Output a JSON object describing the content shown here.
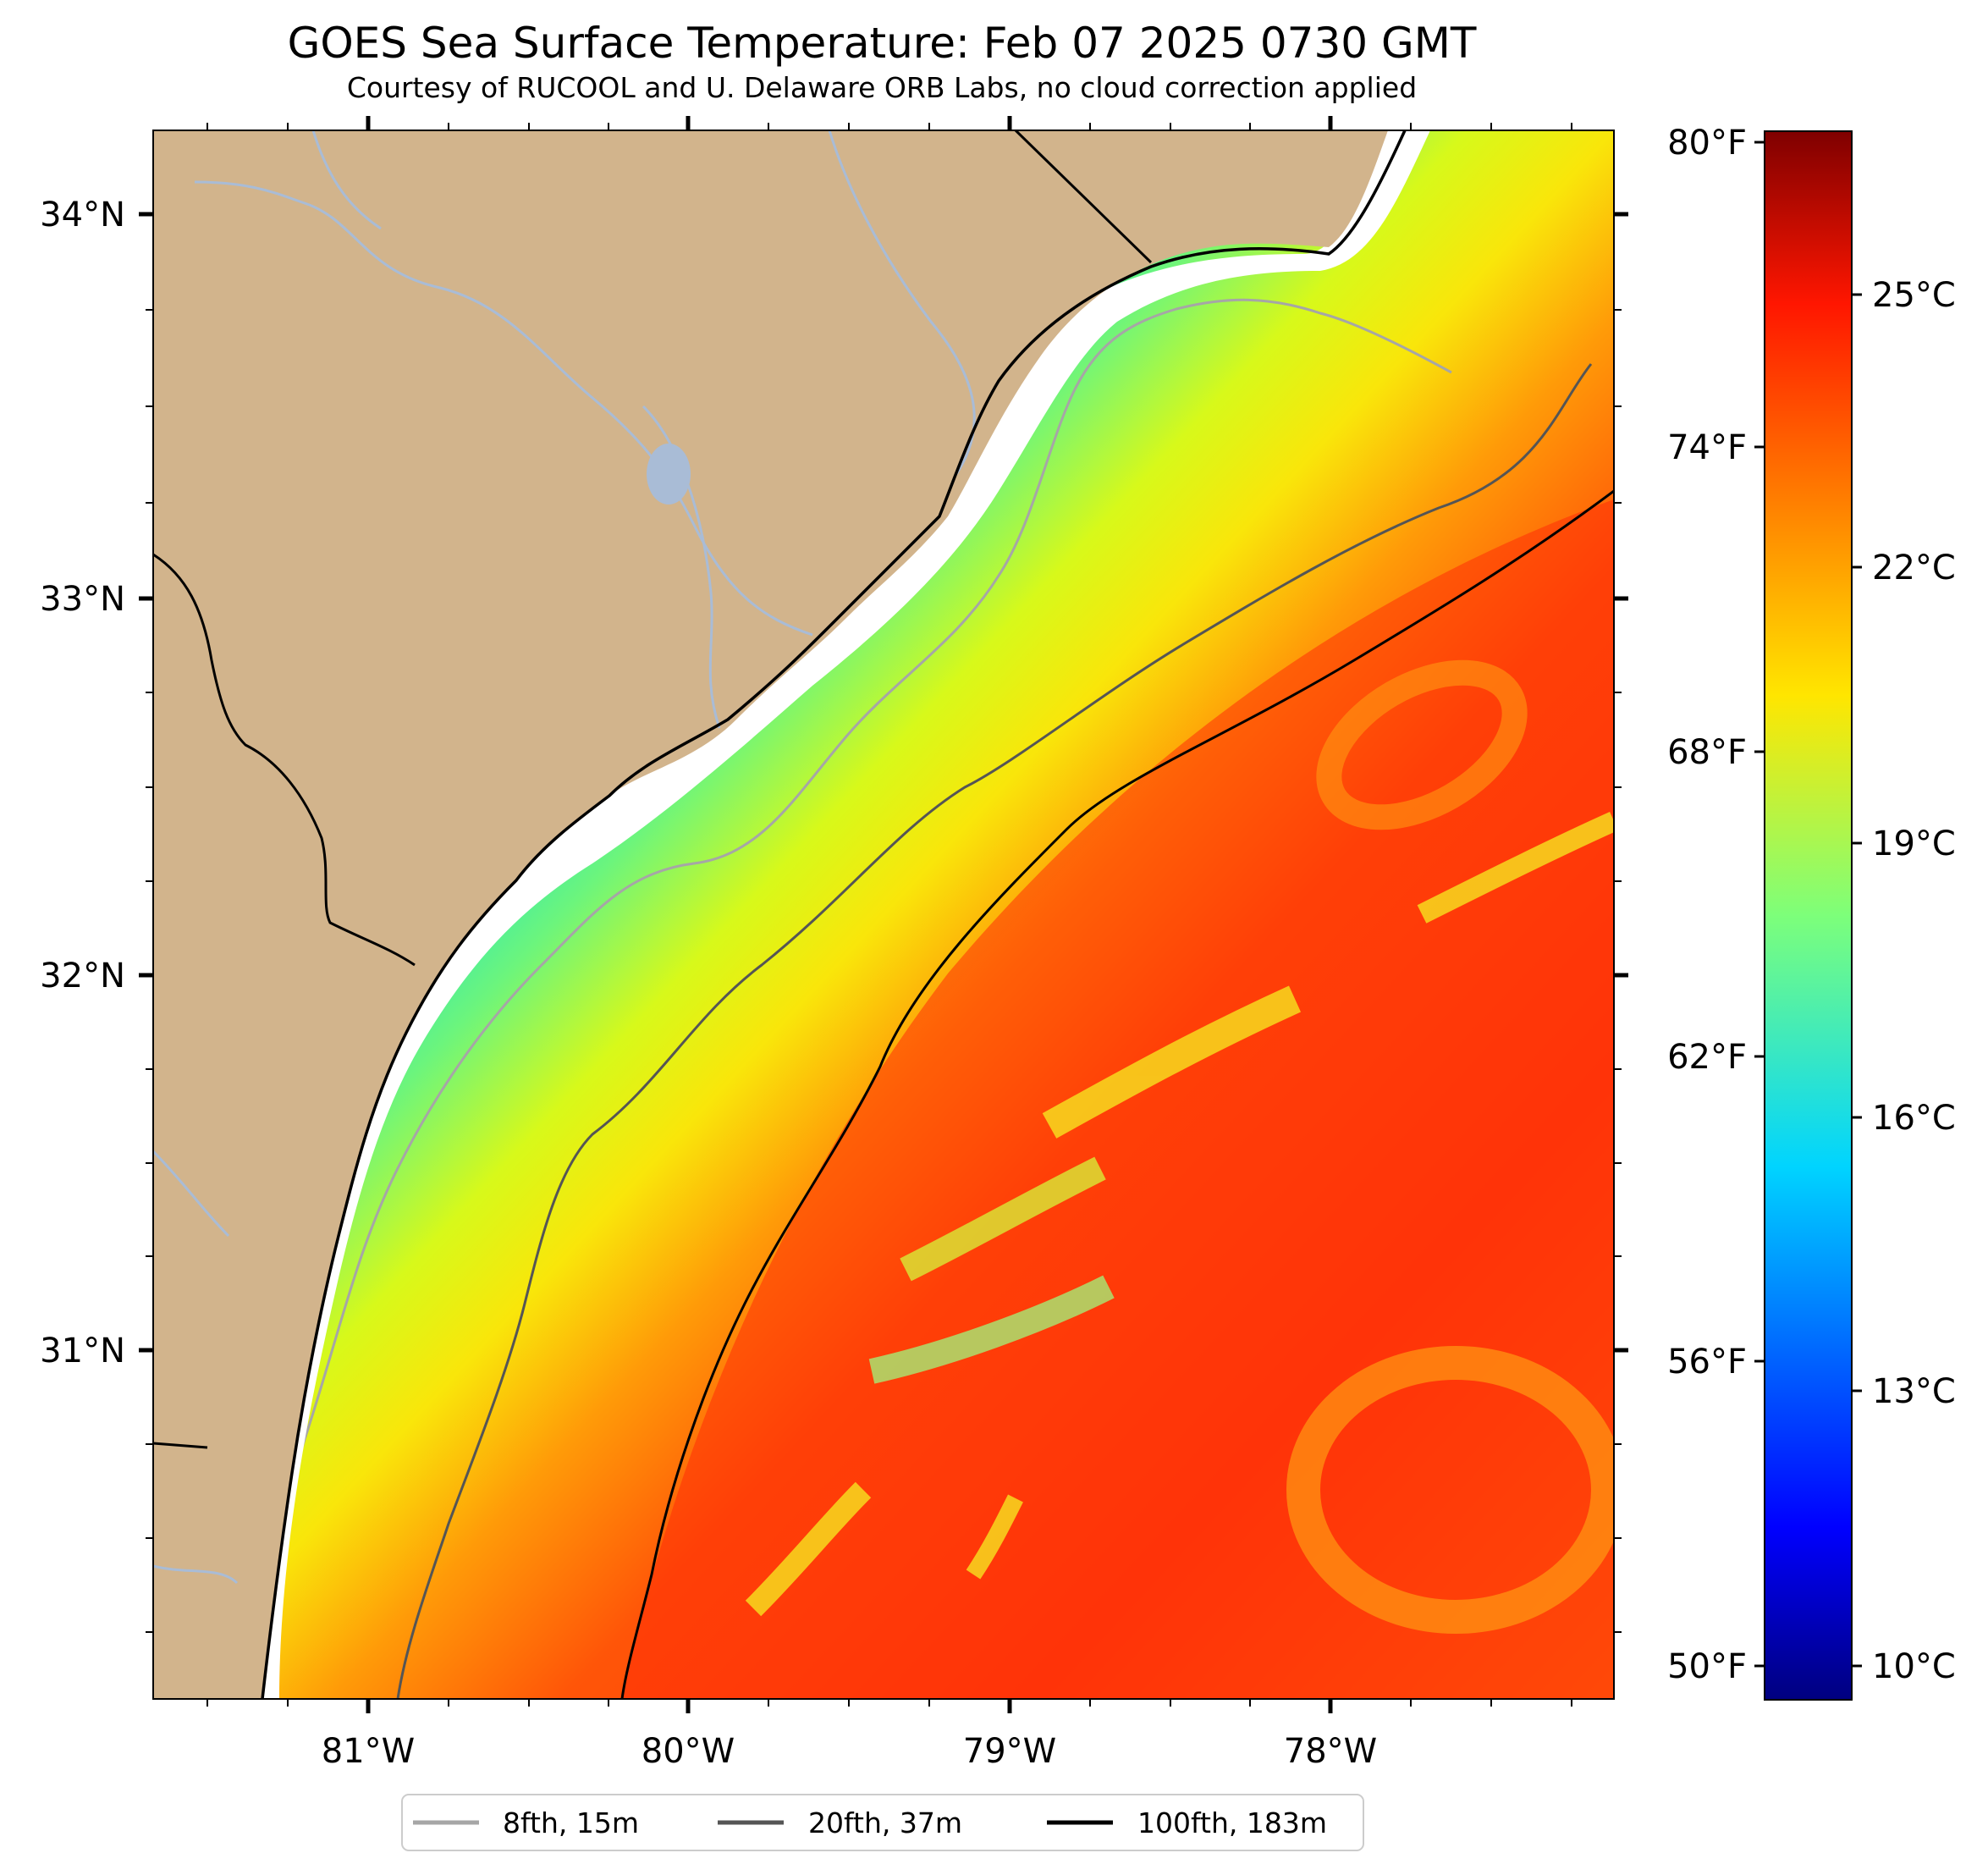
{
  "title": "GOES Sea Surface Temperature: Feb 07 2025 0730 GMT",
  "subtitle": "Courtesy of RUCOOL and U. Delaware ORB Labs, no cloud correction applied",
  "map": {
    "lon_labels": [
      "81°W",
      "80°W",
      "79°W",
      "78°W"
    ],
    "lat_labels": [
      "34°N",
      "33°N",
      "32°N",
      "31°N"
    ]
  },
  "colorbar": {
    "fahrenheit_labels": [
      "80°F",
      "74°F",
      "68°F",
      "62°F",
      "56°F",
      "50°F"
    ],
    "celsius_labels": [
      "25°C",
      "22°C",
      "19°C",
      "16°C",
      "13°C",
      "10°C"
    ],
    "range_celsius": [
      9.5,
      27.5
    ],
    "range_fahrenheit": [
      49.1,
      81.5
    ]
  },
  "legend": {
    "items": [
      {
        "label": "8fth, 15m",
        "color": "#a6a6a6"
      },
      {
        "label": "20fth, 37m",
        "color": "#555555"
      },
      {
        "label": "100fth, 183m",
        "color": "#000000"
      }
    ]
  },
  "colors": {
    "land": "#d2b48c",
    "river": "#a9bcd6",
    "coast": "#000000"
  }
}
